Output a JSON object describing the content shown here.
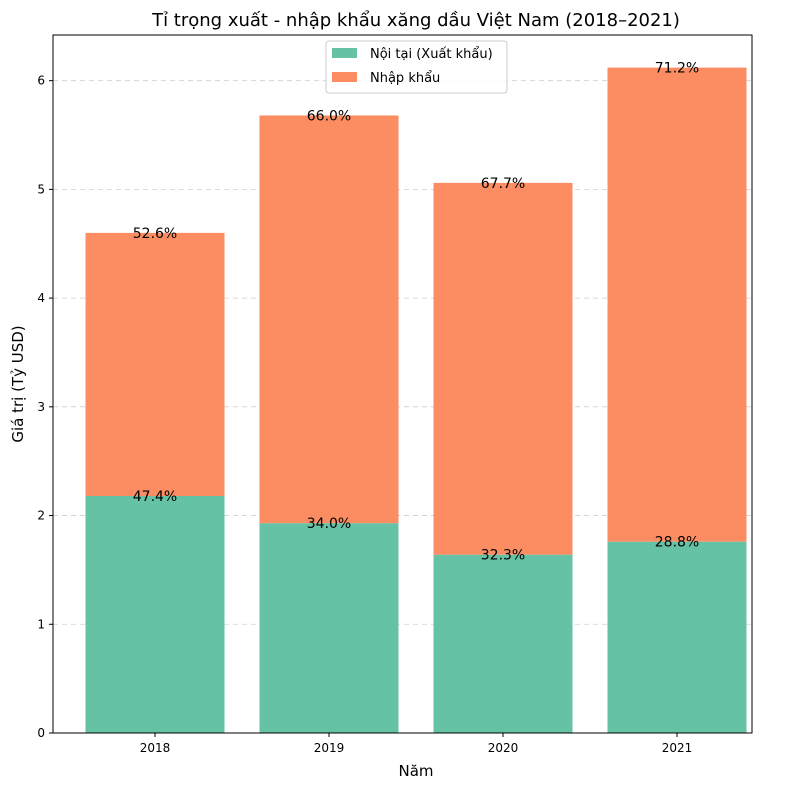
{
  "chart_data": {
    "type": "bar",
    "stacked": true,
    "title": "Tỉ trọng xuất - nhập khẩu xăng dầu Việt Nam (2018–2021)",
    "xlabel": "Năm",
    "ylabel": "Giá trị (Tỷ USD)",
    "categories": [
      "2018",
      "2019",
      "2020",
      "2021"
    ],
    "ylim": [
      0,
      6.42
    ],
    "yticks": [
      0,
      1,
      2,
      3,
      4,
      5,
      6
    ],
    "grid": "y-dashed",
    "legend_position": "top-center",
    "series": [
      {
        "name": "Nội tại (Xuất khẩu)",
        "color": "#66c2a5",
        "values": [
          2.18,
          1.93,
          1.64,
          1.76
        ],
        "labels": [
          "47.4%",
          "34.0%",
          "32.3%",
          "28.8%"
        ]
      },
      {
        "name": "Nhập khẩu",
        "color": "#fc8d62",
        "values": [
          2.42,
          3.75,
          3.42,
          4.36
        ],
        "labels": [
          "52.6%",
          "66.0%",
          "67.7%",
          "71.2%"
        ]
      }
    ]
  }
}
